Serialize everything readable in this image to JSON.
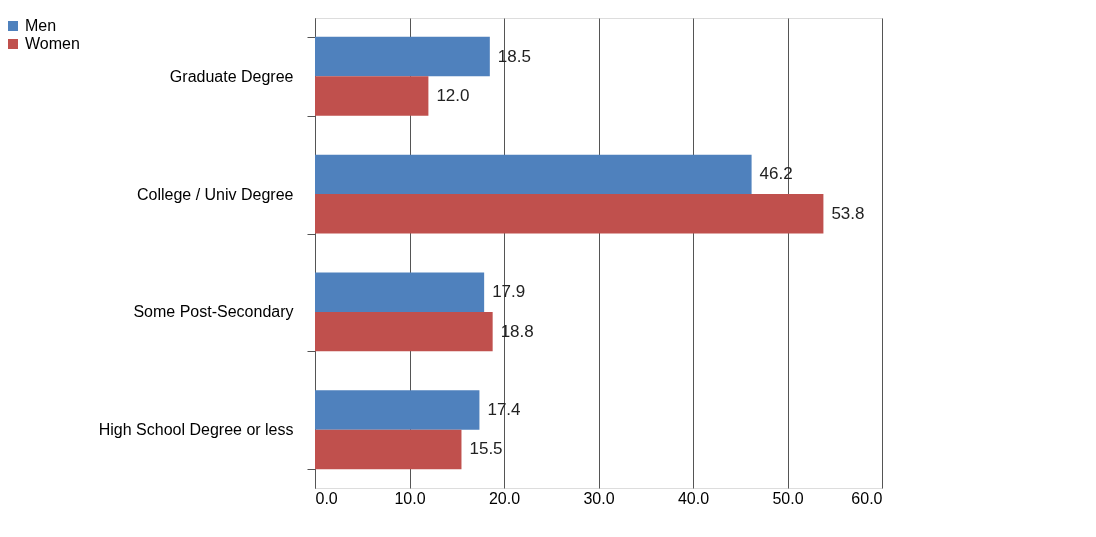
{
  "chart_data": {
    "type": "bar",
    "orientation": "horizontal",
    "categories": [
      "Graduate Degree",
      "College / Univ Degree",
      "Some Post-Secondary",
      "High School Degree or less"
    ],
    "series": [
      {
        "name": "Men",
        "color": "#4f81bd",
        "values": [
          18.5,
          46.2,
          17.9,
          17.4
        ],
        "value_labels": [
          "18.5",
          "46.2",
          "17.9",
          "17.4"
        ]
      },
      {
        "name": "Women",
        "color": "#c0504d",
        "values": [
          12.0,
          53.8,
          18.8,
          15.5
        ],
        "value_labels": [
          "12.0",
          "53.8",
          "18.8",
          "15.5"
        ]
      }
    ],
    "xlim": [
      0,
      60
    ],
    "xticks": [
      {
        "value": 0,
        "label": "0.0"
      },
      {
        "value": 10,
        "label": "10.0"
      },
      {
        "value": 20,
        "label": "20.0"
      },
      {
        "value": 30,
        "label": "30.0"
      },
      {
        "value": 40,
        "label": "40.0"
      },
      {
        "value": 50,
        "label": "50.0"
      },
      {
        "value": 60,
        "label": "60.0"
      }
    ],
    "grid": "x",
    "legend": "left"
  }
}
